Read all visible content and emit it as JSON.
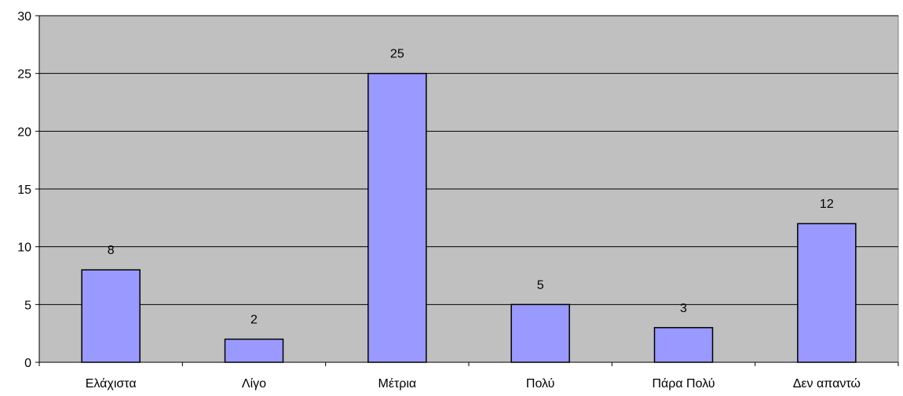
{
  "chart_data": {
    "type": "bar",
    "categories": [
      "Ελάχιστα",
      "Λίγο",
      "Μέτρια",
      "Πολύ",
      "Πάρα Πολύ",
      "Δεν απαντώ"
    ],
    "values": [
      8,
      2,
      25,
      5,
      3,
      12
    ],
    "data_labels": [
      "8",
      "2",
      "25",
      "5",
      "3",
      "12"
    ],
    "y_ticks": [
      "0",
      "5",
      "10",
      "15",
      "20",
      "25",
      "30"
    ],
    "ylim": [
      0,
      30
    ],
    "grid": true,
    "colors": {
      "plot_bg": "#c0c0c0",
      "bar_fill": "#9999ff",
      "bar_stroke": "#000000",
      "grid": "#000000"
    }
  }
}
